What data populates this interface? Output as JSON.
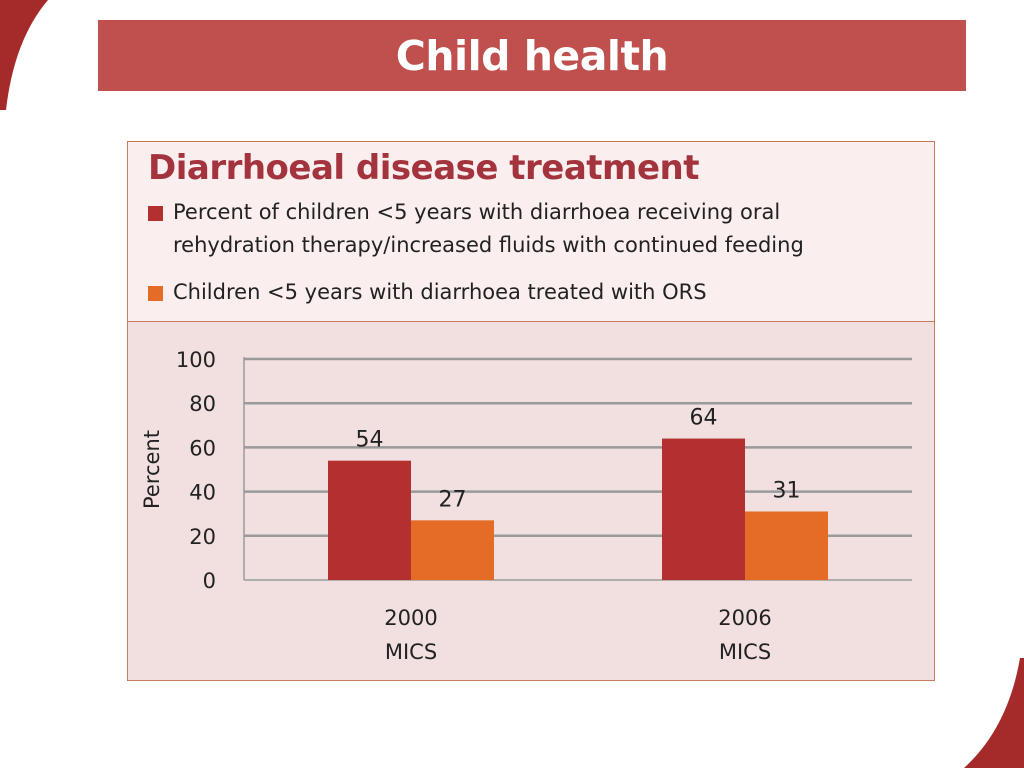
{
  "slide": {
    "title": "Child health",
    "accent_color": "#c0504d",
    "corner_color": "#a52a2a"
  },
  "chart_data": {
    "type": "bar",
    "title": "Diarrhoeal disease treatment",
    "ylabel": "Percent",
    "xlabel": "",
    "ylim": [
      0,
      100
    ],
    "yticks": [
      "0",
      "20",
      "40",
      "60",
      "80",
      "100"
    ],
    "grid": true,
    "legend_position": "top",
    "categories": [
      {
        "line1": "2000",
        "line2": "MICS"
      },
      {
        "line1": "2006",
        "line2": "MICS"
      }
    ],
    "series": [
      {
        "name": "Percent of children <5 years with diarrhoea receiving oral rehydration therapy/increased fluids with continued feeding",
        "color": "#b3302f",
        "values": [
          54,
          64
        ]
      },
      {
        "name": "Children <5 years with diarrhoea treated with ORS",
        "color": "#e46c26",
        "values": [
          27,
          31
        ]
      }
    ],
    "data_labels": [
      [
        "54",
        "64"
      ],
      [
        "27",
        "31"
      ]
    ]
  }
}
